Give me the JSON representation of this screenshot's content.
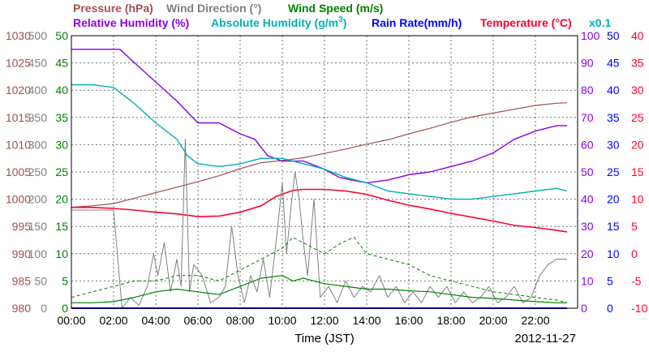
{
  "chart_data": {
    "type": "line",
    "title_row1": {
      "pressure": "Pressure (hPa)",
      "wind_direction": "Wind Direction (°)",
      "wind_speed": "Wind Speed (m/s)"
    },
    "title_row2": {
      "relative_humidity": "Relative Humidity (%)",
      "absolute_humidity": "Absolute Humidity (g/m",
      "absolute_humidity_sup": "3",
      "absolute_humidity_close": ")",
      "rain_rate": "Rain Rate(mm/h)",
      "temperature": "Temperature (°C)",
      "multiplier": "x0.1"
    },
    "xlabel": "Time (JST)",
    "date": "2012-11-27",
    "x_ticks": [
      "00:00",
      "02:00",
      "04:00",
      "06:00",
      "08:00",
      "10:00",
      "12:00",
      "14:00",
      "16:00",
      "18:00",
      "20:00",
      "22:00"
    ],
    "xlim_hours": [
      0,
      24
    ],
    "axes": {
      "pressure": {
        "ticks": [
          "1030",
          "1025",
          "1020",
          "1015",
          "1010",
          "1005",
          "1000",
          "995",
          "990",
          "985",
          "980"
        ],
        "ylim": [
          980,
          1030
        ]
      },
      "wind_direction": {
        "ticks": [
          "500",
          "450",
          "400",
          "350",
          "300",
          "250",
          "200",
          "150",
          "100",
          "50",
          "0"
        ],
        "ylim": [
          0,
          500
        ]
      },
      "wind_speed": {
        "ticks": [
          "50",
          "45",
          "40",
          "35",
          "30",
          "25",
          "20",
          "15",
          "10",
          "5",
          "0"
        ],
        "ylim": [
          0,
          50
        ]
      },
      "humidity": {
        "ticks": [
          "100",
          "90",
          "80",
          "70",
          "60",
          "50",
          "40",
          "30",
          "20",
          "10",
          "0"
        ],
        "ylim": [
          0,
          100
        ]
      },
      "rain_rate": {
        "ticks": [
          "50",
          "45",
          "40",
          "35",
          "30",
          "25",
          "20",
          "15",
          "10",
          "5",
          "0"
        ],
        "ylim": [
          0,
          50
        ]
      },
      "temperature": {
        "ticks": [
          "40",
          "35",
          "30",
          "25",
          "20",
          "15",
          "10",
          "5",
          "0",
          "-5",
          "-10"
        ],
        "ylim": [
          -10,
          40
        ]
      }
    },
    "colors": {
      "pressure": "#a05050",
      "wind_direction": "#808080",
      "wind_speed": "#008000",
      "relative_humidity": "#8a00e6",
      "absolute_humidity": "#00b0b0",
      "rain_rate": "#0000ff",
      "temperature": "#ff0030"
    },
    "series": [
      {
        "key": "pressure",
        "axis": "pressure",
        "x": [
          0,
          1,
          2,
          3,
          4,
          5,
          6,
          7,
          8,
          9,
          10,
          11,
          12,
          13,
          14,
          15,
          16,
          17,
          18,
          19,
          20,
          21,
          22,
          23,
          23.5
        ],
        "y": [
          998.5,
          998.8,
          999.2,
          1000.2,
          1001.2,
          1002.2,
          1003.2,
          1004.3,
          1005.6,
          1006.7,
          1007.1,
          1007.6,
          1008.4,
          1009.2,
          1010.1,
          1010.9,
          1012.0,
          1013.0,
          1014.1,
          1015.1,
          1015.8,
          1016.5,
          1017.2,
          1017.6,
          1017.7
        ]
      },
      {
        "key": "relative_humidity",
        "axis": "humidity",
        "x": [
          0,
          1.2,
          2.3,
          3,
          4,
          5,
          6,
          7,
          8,
          8.7,
          9.3,
          10,
          10.5,
          11,
          12,
          12.7,
          13.3,
          14,
          15,
          16,
          17,
          18,
          19,
          20,
          21,
          22,
          23,
          23.5
        ],
        "y": [
          95,
          95,
          95,
          90,
          83,
          76,
          68,
          68,
          64,
          62,
          56,
          54,
          54,
          54,
          51,
          48,
          47,
          46,
          47,
          49,
          50,
          52,
          54,
          57,
          62,
          65,
          67,
          67
        ]
      },
      {
        "key": "absolute_humidity",
        "axis": "humidity",
        "x": [
          0,
          1,
          2,
          3,
          4,
          5,
          5.5,
          6,
          7,
          8,
          9,
          10,
          11,
          12,
          13,
          14,
          15,
          16,
          17,
          18,
          19,
          20,
          21,
          22,
          23,
          23.5
        ],
        "y": [
          82,
          82,
          81,
          75,
          68,
          62,
          56,
          53,
          52,
          53,
          55,
          55,
          53,
          51,
          48,
          46,
          43,
          42,
          41,
          40,
          40,
          41,
          42,
          43,
          44,
          43
        ]
      },
      {
        "key": "temperature",
        "axis": "temperature",
        "x": [
          0,
          1,
          2,
          3,
          4,
          5,
          6,
          7,
          8,
          9,
          9.7,
          10.5,
          11,
          12,
          13,
          14,
          15,
          16,
          17,
          18,
          19,
          20,
          21,
          22,
          23,
          23.5
        ],
        "y": [
          8.5,
          8.5,
          8.3,
          8.0,
          7.6,
          7.3,
          6.8,
          6.9,
          7.6,
          8.8,
          10.5,
          11.6,
          11.8,
          11.8,
          11.5,
          10.9,
          9.8,
          8.9,
          8.2,
          7.4,
          6.7,
          6.0,
          5.2,
          4.8,
          4.3,
          4.0
        ]
      },
      {
        "key": "wind_direction",
        "axis": "wind_direction",
        "x": [
          0,
          0.5,
          1,
          1.5,
          2,
          2.4,
          2.8,
          3.2,
          3.6,
          3.9,
          4.1,
          4.4,
          4.7,
          5.0,
          5.2,
          5.4,
          5.6,
          5.8,
          6.2,
          6.6,
          7.0,
          7.3,
          7.6,
          7.9,
          8.2,
          8.5,
          8.8,
          9.1,
          9.4,
          9.7,
          10.0,
          10.2,
          10.4,
          10.6,
          10.8,
          11.0,
          11.2,
          11.5,
          11.8,
          12.2,
          12.6,
          13.0,
          13.4,
          13.8,
          14.2,
          14.6,
          15.0,
          15.4,
          15.8,
          16.2,
          16.6,
          17.0,
          17.4,
          17.8,
          18.2,
          18.6,
          19.0,
          19.4,
          19.8,
          20.2,
          20.6,
          21.0,
          21.4,
          21.8,
          22.2,
          22.6,
          23.0,
          23.5
        ],
        "y": [
          180,
          180,
          180,
          180,
          180,
          0,
          20,
          5,
          40,
          100,
          60,
          120,
          30,
          90,
          40,
          310,
          30,
          80,
          60,
          10,
          20,
          40,
          150,
          60,
          10,
          60,
          30,
          90,
          20,
          120,
          230,
          100,
          180,
          250,
          200,
          120,
          60,
          200,
          20,
          40,
          10,
          50,
          20,
          40,
          30,
          60,
          20,
          40,
          10,
          30,
          10,
          40,
          20,
          40,
          10,
          30,
          10,
          20,
          40,
          10,
          20,
          40,
          10,
          20,
          60,
          80,
          90,
          90
        ]
      },
      {
        "key": "wind_speed",
        "axis": "wind_speed",
        "x": [
          0,
          1,
          2,
          3,
          4,
          5,
          6,
          7,
          8,
          9,
          10,
          10.5,
          11,
          12,
          13,
          14,
          15,
          16,
          17,
          18,
          19,
          20,
          21,
          22,
          23,
          23.5
        ],
        "y": [
          1,
          1,
          1.2,
          2,
          3,
          3.5,
          3,
          2.5,
          4,
          5.5,
          6,
          5,
          5.5,
          4.5,
          4,
          3.5,
          3.5,
          3.2,
          3,
          2.5,
          2,
          1.8,
          1.5,
          1.2,
          1,
          1
        ]
      },
      {
        "key": "wind_speed_gust",
        "axis": "wind_speed",
        "x": [
          0,
          1,
          2,
          3,
          4,
          5,
          6,
          7,
          8,
          9,
          10,
          10.5,
          11,
          12,
          12.8,
          13.4,
          14,
          15,
          16,
          17,
          18,
          19,
          20,
          21,
          22,
          23,
          23.5
        ],
        "y": [
          2,
          3,
          4,
          5,
          5,
          6,
          6,
          5,
          7,
          9,
          11,
          13,
          12,
          10,
          12,
          13,
          10,
          9,
          8,
          6,
          5,
          4,
          3,
          2.5,
          2,
          1.5,
          1
        ]
      },
      {
        "key": "rain_rate",
        "axis": "rain_rate",
        "x": [
          0,
          23.5
        ],
        "y": [
          0,
          0
        ]
      }
    ]
  }
}
